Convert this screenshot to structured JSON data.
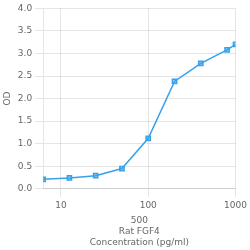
{
  "chart_data": {
    "type": "line",
    "x": [
      6.25,
      12.5,
      25,
      50,
      100,
      200,
      400,
      800,
      1000
    ],
    "values": [
      0.21,
      0.24,
      0.29,
      0.45,
      1.12,
      2.38,
      2.78,
      3.08,
      3.2
    ],
    "xlabel": "500\nRat FGF4\nConcentration (pg/ml)",
    "ylabel": "OD",
    "xlim": [
      6.25,
      1000
    ],
    "ylim": [
      0,
      4
    ],
    "xticks": [
      10,
      100,
      1000
    ],
    "yticks": [
      {
        "value": 0,
        "label": "0.0"
      },
      0.5,
      {
        "value": 1,
        "label": "1.0"
      },
      1.5,
      {
        "value": 2,
        "label": "2.0"
      },
      2.5,
      {
        "value": 3,
        "label": "3.0"
      },
      3.5,
      {
        "value": 4,
        "label": "4.0"
      }
    ],
    "log": "x",
    "grid": true,
    "marker": "square"
  }
}
